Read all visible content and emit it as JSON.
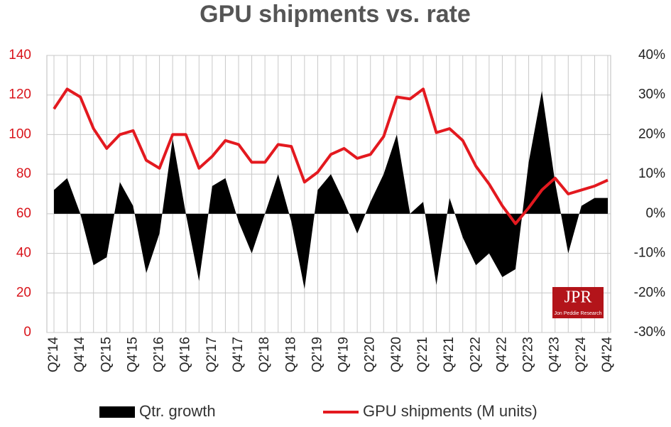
{
  "chart_data": {
    "type": "line",
    "title": "GPU shipments vs. rate",
    "categories": [
      "Q2'14",
      null,
      "Q4'14",
      null,
      "Q2'15",
      null,
      "Q4'15",
      null,
      "Q2'16",
      null,
      "Q4'16",
      null,
      "Q2'17",
      null,
      "Q4'17",
      null,
      "Q2'18",
      null,
      "Q4'18",
      null,
      "Q2'19",
      null,
      "Q4'19",
      null,
      "Q2'20",
      null,
      "Q4'20",
      null,
      "Q2'21",
      null,
      "Q4'21",
      null,
      "Q2'22",
      null,
      "Q4'22",
      null,
      "Q2'23",
      null,
      "Q4'23",
      null,
      "Q2'24",
      null,
      "Q4'24"
    ],
    "series": [
      {
        "name": "Qtr. growth",
        "type": "area",
        "axis": "y2",
        "color": "#000000",
        "values": [
          6,
          9,
          0,
          -13,
          -11,
          8,
          2,
          -15,
          -5,
          19,
          0,
          -17,
          7,
          9,
          -2,
          -10,
          0,
          10,
          -2,
          -19,
          6,
          10,
          3,
          -5,
          3,
          10,
          20,
          0,
          3,
          -18,
          4,
          -6,
          -13,
          -10,
          -16,
          -14,
          13,
          31,
          8,
          -10,
          2,
          4,
          4
        ]
      },
      {
        "name": "GPU shipments (M units)",
        "type": "line",
        "axis": "y",
        "color": "#e3191f",
        "values": [
          113,
          123,
          119,
          103,
          93,
          100,
          102,
          87,
          83,
          100,
          100,
          83,
          89,
          97,
          95,
          86,
          86,
          95,
          94,
          76,
          81,
          90,
          93,
          88,
          90,
          99,
          119,
          118,
          123,
          101,
          103,
          97,
          84,
          75,
          64,
          55,
          63,
          72,
          78,
          70,
          72,
          74,
          77
        ]
      }
    ],
    "ylim": [
      0,
      140
    ],
    "yticks": [
      0,
      20,
      40,
      60,
      80,
      100,
      120,
      140
    ],
    "y2lim": [
      -30,
      40
    ],
    "y2ticks": [
      {
        "value": -30,
        "label": "-30%"
      },
      {
        "value": -20,
        "label": "-20%"
      },
      {
        "value": -10,
        "label": "-10%"
      },
      {
        "value": 0,
        "label": "0%"
      },
      {
        "value": 10,
        "label": "10%"
      },
      {
        "value": 20,
        "label": "20%"
      },
      {
        "value": 30,
        "label": "30%"
      },
      {
        "value": 40,
        "label": "40%"
      }
    ],
    "grid": true,
    "legend": "bottom",
    "logo": {
      "title": "JPR",
      "subtitle": "Jon Peddie Research"
    }
  }
}
